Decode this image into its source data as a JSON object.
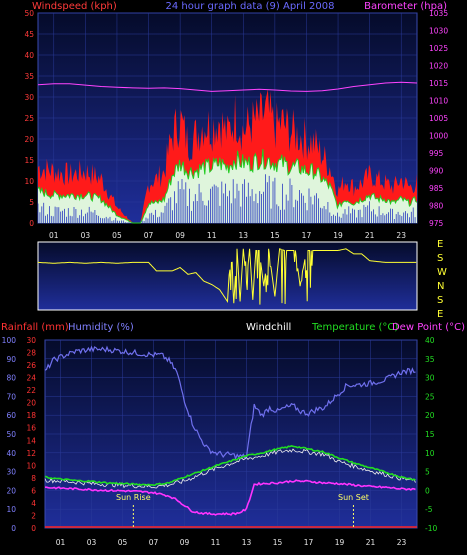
{
  "colors": {
    "background": "#000000",
    "plot_top": "#050b2a",
    "plot_bottom": "#1f2e9a",
    "axis_gridlines": "#2a3a9a",
    "wind_axis": "#ff3a3a",
    "baro_axis": "#ff44ff",
    "rain_axis": "#ff3333",
    "humidity_axis": "#8080ff",
    "temp_axis": "#22dd22",
    "dew_axis": "#ff44ff",
    "direction": "#ffff33",
    "daylight_marker": "#ffff66"
  },
  "header1": {
    "windspeed": "Windspeed (kph)",
    "date": "24 hour graph data  (9) April 2008",
    "barometer": "Barometer (hpa)"
  },
  "header2": {
    "rainfall": "Rainfall (mm)",
    "humidity": "Humidity (%)",
    "windchill": "Windchill",
    "temperature": "Temperature (°C)",
    "dewpoint": "Dew Point (°C)"
  },
  "compass": [
    "E",
    "S",
    "W",
    "N",
    "S",
    "E"
  ],
  "x_ticks": [
    "01",
    "03",
    "05",
    "07",
    "09",
    "11",
    "13",
    "15",
    "17",
    "19",
    "21",
    "23"
  ],
  "sun_rise": "Sun Rise",
  "sun_set": "Sun Set",
  "chart_data": [
    {
      "type": "area",
      "name": "wind-barometer",
      "x_unit": "hour",
      "xlim": [
        0,
        24
      ],
      "y_left": {
        "label": "Windspeed (kph)",
        "ticks": [
          0,
          5,
          10,
          15,
          20,
          25,
          30,
          35,
          40,
          45,
          50
        ],
        "lim": [
          0,
          50
        ]
      },
      "y_right": {
        "label": "Barometer (hpa)",
        "ticks": [
          975,
          980,
          985,
          990,
          995,
          1000,
          1005,
          1010,
          1015,
          1020,
          1025,
          1030,
          1035
        ],
        "lim": [
          975,
          1035
        ]
      },
      "series": [
        {
          "name": "Barometer (hpa)",
          "axis": "right",
          "x": [
            0,
            1,
            2,
            3,
            4,
            5,
            6,
            7,
            8,
            9,
            10,
            11,
            12,
            13,
            14,
            15,
            16,
            17,
            18,
            19,
            20,
            21,
            22,
            23,
            24
          ],
          "values": [
            1014.5,
            1014.8,
            1014.8,
            1014.4,
            1014.0,
            1013.8,
            1013.6,
            1013.5,
            1013.6,
            1013.4,
            1013.0,
            1012.6,
            1012.8,
            1013.0,
            1013.2,
            1013.0,
            1012.7,
            1012.6,
            1012.8,
            1013.3,
            1014.0,
            1014.5,
            1015.0,
            1015.2,
            1015.0
          ]
        },
        {
          "name": "gust",
          "axis": "left",
          "x": [
            0,
            1,
            2,
            3,
            4,
            5,
            6,
            6.5,
            7,
            7.5,
            8,
            8.5,
            9,
            9.5,
            10,
            10.5,
            11,
            11.5,
            12,
            12.5,
            13,
            13.5,
            14,
            14.5,
            15,
            15.5,
            16,
            16.5,
            17,
            17.5,
            18,
            18.5,
            19,
            19.5,
            20,
            20.5,
            21,
            21.5,
            22,
            22.5,
            23,
            23.5,
            24
          ],
          "values": [
            14,
            13,
            12,
            13,
            11,
            4,
            0,
            0,
            10,
            11,
            13,
            22,
            26,
            20,
            22,
            25,
            24,
            26,
            22,
            27,
            23,
            25,
            26,
            28,
            24,
            25,
            23,
            22,
            21,
            20,
            17,
            14,
            8,
            11,
            9,
            10,
            12,
            11,
            10,
            9,
            11,
            9,
            10
          ]
        },
        {
          "name": "average",
          "axis": "left",
          "x": [
            0,
            1,
            2,
            3,
            4,
            5,
            6,
            6.5,
            7,
            7.5,
            8,
            8.5,
            9,
            9.5,
            10,
            10.5,
            11,
            11.5,
            12,
            12.5,
            13,
            13.5,
            14,
            14.5,
            15,
            15.5,
            16,
            16.5,
            17,
            17.5,
            18,
            18.5,
            19,
            19.5,
            20,
            20.5,
            21,
            21.5,
            22,
            22.5,
            23,
            23.5,
            24
          ],
          "values": [
            8,
            7,
            7,
            7,
            6,
            2,
            0,
            0,
            5,
            5,
            6,
            12,
            15,
            13,
            13,
            14,
            14,
            15,
            14,
            16,
            15,
            15,
            16,
            16,
            15,
            15,
            14,
            14,
            13,
            13,
            11,
            9,
            4,
            6,
            5,
            6,
            7,
            6,
            6,
            5,
            6,
            5,
            6
          ]
        },
        {
          "name": "minimum",
          "axis": "left",
          "x": [
            0,
            1,
            2,
            3,
            4,
            5,
            6,
            6.5,
            7,
            7.5,
            8,
            8.5,
            9,
            9.5,
            10,
            10.5,
            11,
            11.5,
            12,
            12.5,
            13,
            13.5,
            14,
            14.5,
            15,
            15.5,
            16,
            16.5,
            17,
            17.5,
            18,
            18.5,
            19,
            19.5,
            20,
            20.5,
            21,
            21.5,
            22,
            22.5,
            23,
            23.5,
            24
          ],
          "values": [
            5,
            4,
            4,
            4,
            3,
            1,
            0,
            0,
            3,
            3,
            4,
            8,
            10,
            9,
            9,
            10,
            10,
            10,
            10,
            11,
            10,
            10,
            11,
            11,
            10,
            10,
            10,
            10,
            9,
            9,
            7,
            6,
            2,
            4,
            3,
            4,
            5,
            4,
            4,
            3,
            4,
            3,
            4
          ]
        }
      ]
    },
    {
      "type": "line",
      "name": "wind-direction",
      "x_unit": "hour",
      "xlim": [
        0,
        24
      ],
      "y_labels": [
        "E",
        "S",
        "W",
        "N",
        "S",
        "E"
      ],
      "series": [
        {
          "name": "direction",
          "x": [
            0,
            1,
            2,
            3,
            4,
            5,
            6,
            7,
            7.5,
            8,
            8.5,
            9,
            9.5,
            10,
            10.5,
            11,
            11.5,
            12,
            12.2,
            12.4,
            12.6,
            12.8,
            13,
            13.2,
            13.4,
            13.6,
            13.8,
            14,
            14.3,
            14.6,
            15,
            15.3,
            15.6,
            16,
            16.3,
            16.6,
            17,
            17.5,
            18,
            18.5,
            19,
            19.5,
            20,
            20.5,
            21,
            22,
            23,
            24
          ],
          "values": [
            2.8,
            2.75,
            2.8,
            2.75,
            2.8,
            2.75,
            2.8,
            2.8,
            2.3,
            2.3,
            2.3,
            2.5,
            2.1,
            2.2,
            1.7,
            1.5,
            1.2,
            0.5,
            3.6,
            0.4,
            3.6,
            0.5,
            3.6,
            1.6,
            3.6,
            0.6,
            3.5,
            3.5,
            1.4,
            3.6,
            0.8,
            3.6,
            3.5,
            3.5,
            3.5,
            1.4,
            3.5,
            3.5,
            3.5,
            3.5,
            3.5,
            3.6,
            3.3,
            3.3,
            2.9,
            2.8,
            2.8,
            2.8
          ]
        }
      ]
    },
    {
      "type": "line",
      "name": "temperature-humidity",
      "x_unit": "hour",
      "xlim": [
        0,
        24
      ],
      "y_axes": {
        "humidity": {
          "label": "Humidity (%)",
          "ticks": [
            0,
            10,
            20,
            30,
            40,
            50,
            60,
            70,
            80,
            90,
            100
          ],
          "lim": [
            0,
            100
          ]
        },
        "rainfall": {
          "label": "Rainfall (mm)",
          "ticks": [
            0,
            2,
            4,
            6,
            8,
            10,
            12,
            14,
            16,
            18,
            20,
            22,
            24,
            26,
            28,
            30
          ],
          "lim": [
            0,
            30
          ]
        },
        "temperature": {
          "label": "Temperature (°C)",
          "ticks": [
            -10,
            -5,
            0,
            5,
            10,
            15,
            20,
            25,
            30,
            35,
            40
          ],
          "lim": [
            -10,
            40
          ]
        }
      },
      "events": {
        "sun_rise_hour": 5.7,
        "sun_set_hour": 19.9
      },
      "series": [
        {
          "name": "Humidity (%)",
          "axis": "humidity",
          "x": [
            0,
            0.5,
            1,
            2,
            3,
            4,
            5,
            6,
            7,
            7.5,
            8,
            8.5,
            9,
            9.5,
            10,
            10.5,
            11,
            11.5,
            12,
            12.5,
            13,
            13.5,
            14,
            14.5,
            15,
            15.5,
            16,
            16.5,
            17,
            17.5,
            18,
            18.5,
            19,
            19.5,
            20,
            21,
            22,
            23,
            24
          ],
          "values": [
            83,
            89,
            91,
            94,
            95,
            95,
            94,
            93,
            92,
            92,
            89,
            83,
            68,
            56,
            48,
            42,
            40,
            39,
            39,
            38,
            38,
            65,
            60,
            64,
            62,
            64,
            65,
            62,
            61,
            63,
            64,
            68,
            72,
            76,
            76,
            77,
            79,
            83,
            84
          ]
        },
        {
          "name": "Temperature (°C)",
          "axis": "temperature",
          "x": [
            0,
            1,
            2,
            3,
            4,
            5,
            6,
            7,
            8,
            9,
            10,
            11,
            12,
            13,
            14,
            15,
            16,
            17,
            18,
            19,
            20,
            21,
            22,
            23,
            24
          ],
          "values": [
            3.5,
            3.0,
            2.6,
            2.4,
            2.0,
            1.8,
            1.6,
            1.5,
            2.0,
            3.6,
            5.0,
            6.5,
            7.8,
            9.2,
            10.0,
            11.0,
            11.8,
            11.0,
            10.2,
            8.6,
            7.2,
            6.0,
            4.8,
            3.5,
            2.8
          ]
        },
        {
          "name": "Windchill",
          "axis": "temperature",
          "x": [
            0,
            1,
            2,
            3,
            4,
            5,
            6,
            7,
            8,
            9,
            10,
            11,
            12,
            13,
            14,
            15,
            16,
            17,
            18,
            19,
            20,
            21,
            22,
            23,
            24
          ],
          "values": [
            2.8,
            2.5,
            2.2,
            1.8,
            1.6,
            1.4,
            1.2,
            1.0,
            1.5,
            2.5,
            4.2,
            5.8,
            7.2,
            8.4,
            9.2,
            10.2,
            10.8,
            10.2,
            9.6,
            7.6,
            6.4,
            5.2,
            4.2,
            3.2,
            2.4
          ]
        },
        {
          "name": "Dew Point (°C)",
          "axis": "temperature",
          "x": [
            0,
            1,
            2,
            3,
            4,
            5,
            6,
            7,
            7.5,
            8,
            8.5,
            9,
            9.5,
            10,
            10.5,
            11,
            11.5,
            12,
            12.5,
            13,
            13.5,
            14,
            15,
            16,
            17,
            18,
            19,
            20,
            21,
            22,
            23,
            24
          ],
          "values": [
            0.8,
            0.6,
            0.4,
            0.2,
            0.0,
            -0.1,
            -0.3,
            -0.6,
            -1.0,
            -1.5,
            -2.5,
            -4.0,
            -5.5,
            -6.0,
            -6.2,
            -6.3,
            -6.2,
            -6.3,
            -6.0,
            -5.0,
            1.6,
            1.8,
            2.0,
            2.5,
            2.4,
            2.0,
            1.8,
            1.4,
            1.0,
            0.8,
            0.4,
            0.3
          ]
        },
        {
          "name": "Rainfall (mm)",
          "axis": "rainfall",
          "x": [
            0,
            24
          ],
          "values": [
            0,
            0
          ]
        }
      ]
    }
  ]
}
